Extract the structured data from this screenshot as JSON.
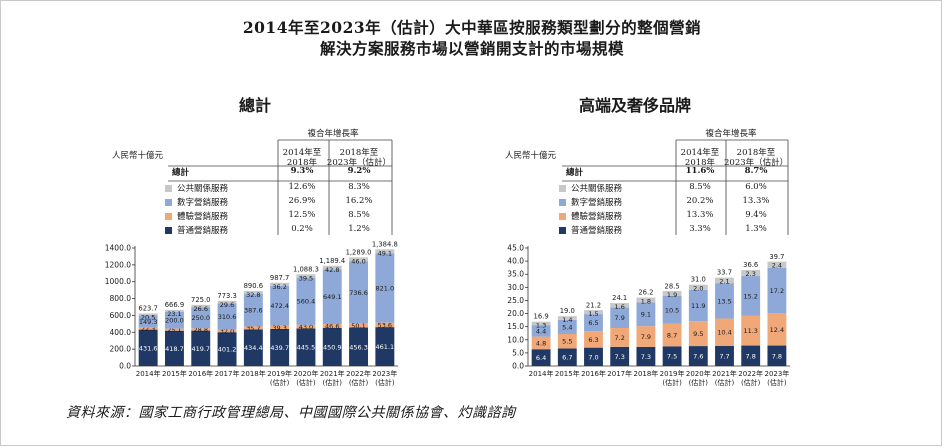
{
  "title_line1": "2014年至2023年（估計）大中華區按服務類型劃分的整個營銷",
  "title_line2": "解決方案服務市場以營銷開支計的市場規模",
  "source": "資料來源：國家工商行政管理總局、中國國際公共關係協會、灼識諮詢",
  "colors": {
    "public_relations": "#c8c8c8",
    "digital": "#8ea9d8",
    "experiential": "#f0a879",
    "general": "#1f3864"
  },
  "panels": [
    {
      "subtitle": "總計",
      "unit": "人民幣十億元",
      "cagr_header": "複合年增長率",
      "col1_header_l1": "2014年至",
      "col1_header_l2": "2018年",
      "col2_header_l1": "2018年至",
      "col2_header_l2": "2023年（估計）",
      "rows": [
        {
          "label": "總計",
          "v1": "9.3%",
          "v2": "9.2%",
          "bold": true
        },
        {
          "label": "公共關係服務",
          "v1": "12.6%",
          "v2": "8.3%"
        },
        {
          "label": "數字營銷服務",
          "v1": "26.9%",
          "v2": "16.2%"
        },
        {
          "label": "體驗營銷服務",
          "v1": "12.5%",
          "v2": "8.5%"
        },
        {
          "label": "普通營銷服務",
          "v1": "0.2%",
          "v2": "1.2%"
        }
      ]
    },
    {
      "subtitle": "高端及奢侈品牌",
      "unit": "人民幣十億元",
      "cagr_header": "複合年增長率",
      "col1_header_l1": "2014年至",
      "col1_header_l2": "2018年",
      "col2_header_l1": "2018年至",
      "col2_header_l2": "2023年（估計）",
      "rows": [
        {
          "label": "總計",
          "v1": "11.6%",
          "v2": "8.7%",
          "bold": true
        },
        {
          "label": "公共關係服務",
          "v1": "8.5%",
          "v2": "6.0%"
        },
        {
          "label": "數字營銷服務",
          "v1": "20.2%",
          "v2": "13.3%"
        },
        {
          "label": "體驗營銷服務",
          "v1": "13.3%",
          "v2": "9.4%"
        },
        {
          "label": "普通營銷服務",
          "v1": "3.3%",
          "v2": "1.3%"
        }
      ]
    }
  ],
  "chart_data": [
    {
      "type": "bar",
      "stacked": true,
      "title": "總計",
      "ylabel": "人民幣十億元",
      "categories": [
        "2014年",
        "2015年",
        "2016年",
        "2017年",
        "2018年",
        "2019年\n(估計)",
        "2020年\n(估計)",
        "2021年\n(估計)",
        "2022年\n(估計)",
        "2023年\n(估計)"
      ],
      "ylim": [
        0,
        1400
      ],
      "yticks": [
        "0.0",
        "200.0",
        "400.0",
        "600.0",
        "800.0",
        "1000.0",
        "1200.0",
        "1400.0"
      ],
      "ytick_values": [
        0,
        200,
        400,
        600,
        800,
        1000,
        1200,
        1400
      ],
      "series": [
        {
          "name": "普通營銷服務",
          "labels": [
            "431.6",
            "418.7",
            "419.7",
            "401.2",
            "434.4",
            "439.7",
            "445.5",
            "450.9",
            "456.3",
            "461.1"
          ],
          "values": [
            431.6,
            418.7,
            419.7,
            401.2,
            434.4,
            439.7,
            445.5,
            450.9,
            456.3,
            461.1
          ]
        },
        {
          "name": "體驗營銷服務",
          "labels": [
            "22.3",
            "25.1",
            "28.8",
            "32.0",
            "35.7",
            "39.3",
            "43.0",
            "46.6",
            "50.1",
            "53.6"
          ],
          "values": [
            22.3,
            25.1,
            28.8,
            32.0,
            35.7,
            39.3,
            43.0,
            46.6,
            50.1,
            53.6
          ]
        },
        {
          "name": "數字營銷服務",
          "labels": [
            "149.3",
            "200.0",
            "250.0",
            "310.6",
            "387.6",
            "472.4",
            "560.4",
            "649.1",
            "736.6",
            "821.0"
          ],
          "values": [
            149.3,
            200.0,
            250.0,
            310.6,
            387.6,
            472.4,
            560.4,
            649.1,
            736.6,
            821.0
          ]
        },
        {
          "name": "公共關係服務",
          "labels": [
            "20.5",
            "23.1",
            "26.6",
            "29.6",
            "32.8",
            "36.2",
            "39.5",
            "42.8",
            "46.0",
            "49.1"
          ],
          "values": [
            20.5,
            23.1,
            26.6,
            29.6,
            32.8,
            36.2,
            39.5,
            42.8,
            46.0,
            49.1
          ]
        }
      ],
      "totals": [
        "623.7",
        "666.9",
        "725.0",
        "773.3",
        "890.6",
        "987.7",
        "1,088.3",
        "1,189.4",
        "1,289.0",
        "1,384.8"
      ],
      "total_values": [
        623.7,
        666.9,
        725.0,
        773.3,
        890.6,
        987.7,
        1088.3,
        1189.4,
        1289.0,
        1384.8
      ]
    },
    {
      "type": "bar",
      "stacked": true,
      "title": "高端及奢侈品牌",
      "ylabel": "人民幣十億元",
      "categories": [
        "2014年",
        "2015年",
        "2016年",
        "2017年",
        "2018年",
        "2019年\n(估計)",
        "2020年\n(估計)",
        "2021年\n(估計)",
        "2022年\n(估計)",
        "2023年\n(估計)"
      ],
      "ylim": [
        0,
        45
      ],
      "yticks": [
        "0.0",
        "5.0",
        "10.0",
        "15.0",
        "20.0",
        "25.0",
        "30.0",
        "35.0",
        "40.0",
        "45.0"
      ],
      "ytick_values": [
        0,
        5,
        10,
        15,
        20,
        25,
        30,
        35,
        40,
        45
      ],
      "series": [
        {
          "name": "普通營銷服務",
          "labels": [
            "6.4",
            "6.7",
            "7.0",
            "7.3",
            "7.3",
            "7.5",
            "7.6",
            "7.7",
            "7.8",
            "7.8"
          ],
          "values": [
            6.4,
            6.7,
            7.0,
            7.3,
            7.3,
            7.5,
            7.6,
            7.7,
            7.8,
            7.8
          ]
        },
        {
          "name": "體驗營銷服務",
          "labels": [
            "4.8",
            "5.5",
            "6.3",
            "7.2",
            "7.9",
            "8.7",
            "9.5",
            "10.4",
            "11.3",
            "12.4"
          ],
          "values": [
            4.8,
            5.5,
            6.3,
            7.2,
            7.9,
            8.7,
            9.5,
            10.4,
            11.3,
            12.4
          ]
        },
        {
          "name": "數字營銷服務",
          "labels": [
            "4.4",
            "5.4",
            "6.5",
            "7.9",
            "9.1",
            "10.5",
            "11.9",
            "13.5",
            "15.2",
            "17.2"
          ],
          "values": [
            4.4,
            5.4,
            6.5,
            7.9,
            9.1,
            10.5,
            11.9,
            13.5,
            15.2,
            17.2
          ]
        },
        {
          "name": "公共關係服務",
          "labels": [
            "1.3",
            "1.4",
            "1.5",
            "1.6",
            "1.8",
            "1.9",
            "2.0",
            "2.1",
            "2.3",
            "2.4"
          ],
          "values": [
            1.3,
            1.4,
            1.5,
            1.6,
            1.8,
            1.9,
            2.0,
            2.1,
            2.3,
            2.4
          ]
        }
      ],
      "totals": [
        "16.9",
        "19.0",
        "21.2",
        "24.1",
        "26.2",
        "28.5",
        "31.0",
        "33.7",
        "36.6",
        "39.7"
      ],
      "total_values": [
        16.9,
        19.0,
        21.2,
        24.1,
        26.2,
        28.5,
        31.0,
        33.7,
        36.6,
        39.7
      ]
    }
  ]
}
